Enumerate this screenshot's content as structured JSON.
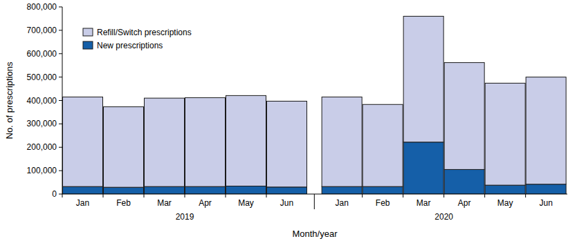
{
  "chart_data": {
    "type": "bar",
    "stacked": true,
    "grid": false,
    "legend": "upper left",
    "y_label": "No. of prescriptions",
    "x_label": "Month/year",
    "categories": [
      "Jan",
      "Feb",
      "Mar",
      "Apr",
      "May",
      "Jun",
      "Jan",
      "Feb",
      "Mar",
      "Apr",
      "May",
      "Jun"
    ],
    "x_groups": [
      "2019",
      "2020"
    ],
    "series": [
      {
        "name": "New prescriptions",
        "color": "#155fa8",
        "values": [
          32000,
          29000,
          32000,
          32000,
          34000,
          30000,
          32000,
          32000,
          222000,
          105000,
          38000,
          42000
        ]
      },
      {
        "name": "Refill/Switch prescriptions",
        "color": "#c9cde8",
        "values": [
          383000,
          344000,
          378000,
          380000,
          387000,
          367000,
          383000,
          351000,
          538000,
          457000,
          436000,
          458000
        ]
      }
    ],
    "ylim": [
      0,
      800000
    ],
    "yticks": [
      0,
      {
        "value": 100000,
        "label": "100,000"
      },
      {
        "value": 200000,
        "label": "200,000"
      },
      {
        "value": 300000,
        "label": "300,000"
      },
      {
        "value": 400000,
        "label": "400,000"
      },
      {
        "value": 500000,
        "label": "500,000"
      },
      {
        "value": 600000,
        "label": "600,000"
      },
      {
        "value": 700000,
        "label": "700,000"
      },
      {
        "value": 800000,
        "label": "800,000"
      }
    ]
  }
}
